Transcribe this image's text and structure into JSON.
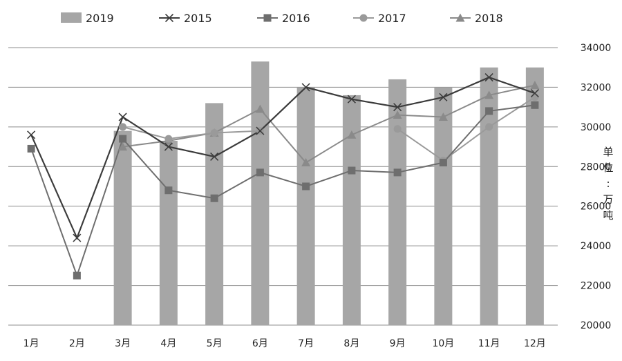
{
  "chart_data": {
    "type": "bar+line",
    "categories": [
      "1月",
      "2月",
      "3月",
      "4月",
      "5月",
      "6月",
      "7月",
      "8月",
      "9月",
      "10月",
      "11月",
      "12月"
    ],
    "y_axis": {
      "min": 20000,
      "max": 34000,
      "ticks": [
        20000,
        22000,
        24000,
        26000,
        28000,
        30000,
        32000,
        34000
      ],
      "tick_labels": [
        "20000",
        "22000",
        "24000",
        "26000",
        "28000",
        "30000",
        "32000",
        "34000"
      ],
      "position": "right",
      "unit_label": [
        "单",
        "位",
        ":",
        "万",
        "吨"
      ]
    },
    "grid": true,
    "legend_position": "top",
    "bars": {
      "name": "2019",
      "color": "#a6a6a6",
      "values": [
        null,
        null,
        29800,
        29300,
        31200,
        33300,
        32000,
        31600,
        32400,
        32000,
        33000,
        33000
      ]
    },
    "series": [
      {
        "name": "2015",
        "marker": "x",
        "color": "#3c3c3c",
        "values": [
          29600,
          24400,
          30500,
          29000,
          28500,
          29800,
          32000,
          31400,
          31000,
          31500,
          32500,
          31700
        ]
      },
      {
        "name": "2016",
        "marker": "square",
        "color": "#6e6e6e",
        "values": [
          28900,
          22500,
          29400,
          26800,
          26400,
          27700,
          27000,
          27800,
          27700,
          28200,
          30800,
          31100
        ]
      },
      {
        "name": "2017",
        "marker": "circle",
        "color": "#9a9a9a",
        "values": [
          null,
          null,
          30000,
          29400,
          29700,
          29800,
          null,
          null,
          29900,
          28300,
          30000,
          31500
        ]
      },
      {
        "name": "2018",
        "marker": "triangle",
        "color": "#8a8a8a",
        "values": [
          null,
          null,
          29000,
          29300,
          29700,
          30900,
          28200,
          29600,
          30600,
          30500,
          31600,
          32100
        ]
      }
    ]
  }
}
